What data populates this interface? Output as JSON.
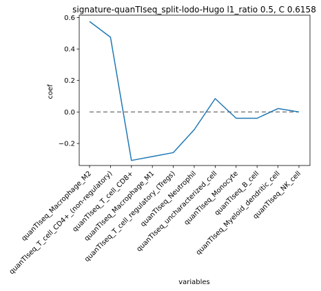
{
  "chart_data": {
    "type": "line",
    "title": "signature-quanTIseq_split-lodo-Hugo l1_ratio 0.5, C 0.6158",
    "xlabel": "variables",
    "ylabel": "coef",
    "categories": [
      "quanTIseq_Macrophage_M2",
      "quanTIseq_T_cell_CD4+_(non-regulatory)",
      "quanTIseq_T_cell_CD8+",
      "quanTIseq_Macrophage_M1",
      "quanTIseq_T_cell_regulatory_(Tregs)",
      "quanTIseq_Neutrophil",
      "quanTIseq_uncharacterized_cell",
      "quanTIseq_Monocyte",
      "quanTIseq_B_cell",
      "quanTIseq_Myeloid_dendritic_cell",
      "quanTIseq_NK_cell"
    ],
    "series": [
      {
        "values": [
          0.575,
          0.475,
          -0.308,
          -0.283,
          -0.258,
          -0.112,
          0.085,
          -0.04,
          -0.04,
          0.022,
          0.0
        ],
        "color": "#1f77b4"
      }
    ],
    "reference_line": {
      "y": 0.0,
      "style": "dashed",
      "color": "#808080"
    },
    "ylim": [
      -0.34,
      0.615
    ],
    "yticks": [
      {
        "value": 0.6,
        "label": "0.6"
      },
      {
        "value": 0.4,
        "label": "0.4"
      },
      {
        "value": 0.2,
        "label": "0.2"
      },
      {
        "value": 0.0,
        "label": "0.0"
      },
      {
        "value": -0.2,
        "label": "−0.2"
      }
    ],
    "grid": false,
    "legend": "none"
  }
}
